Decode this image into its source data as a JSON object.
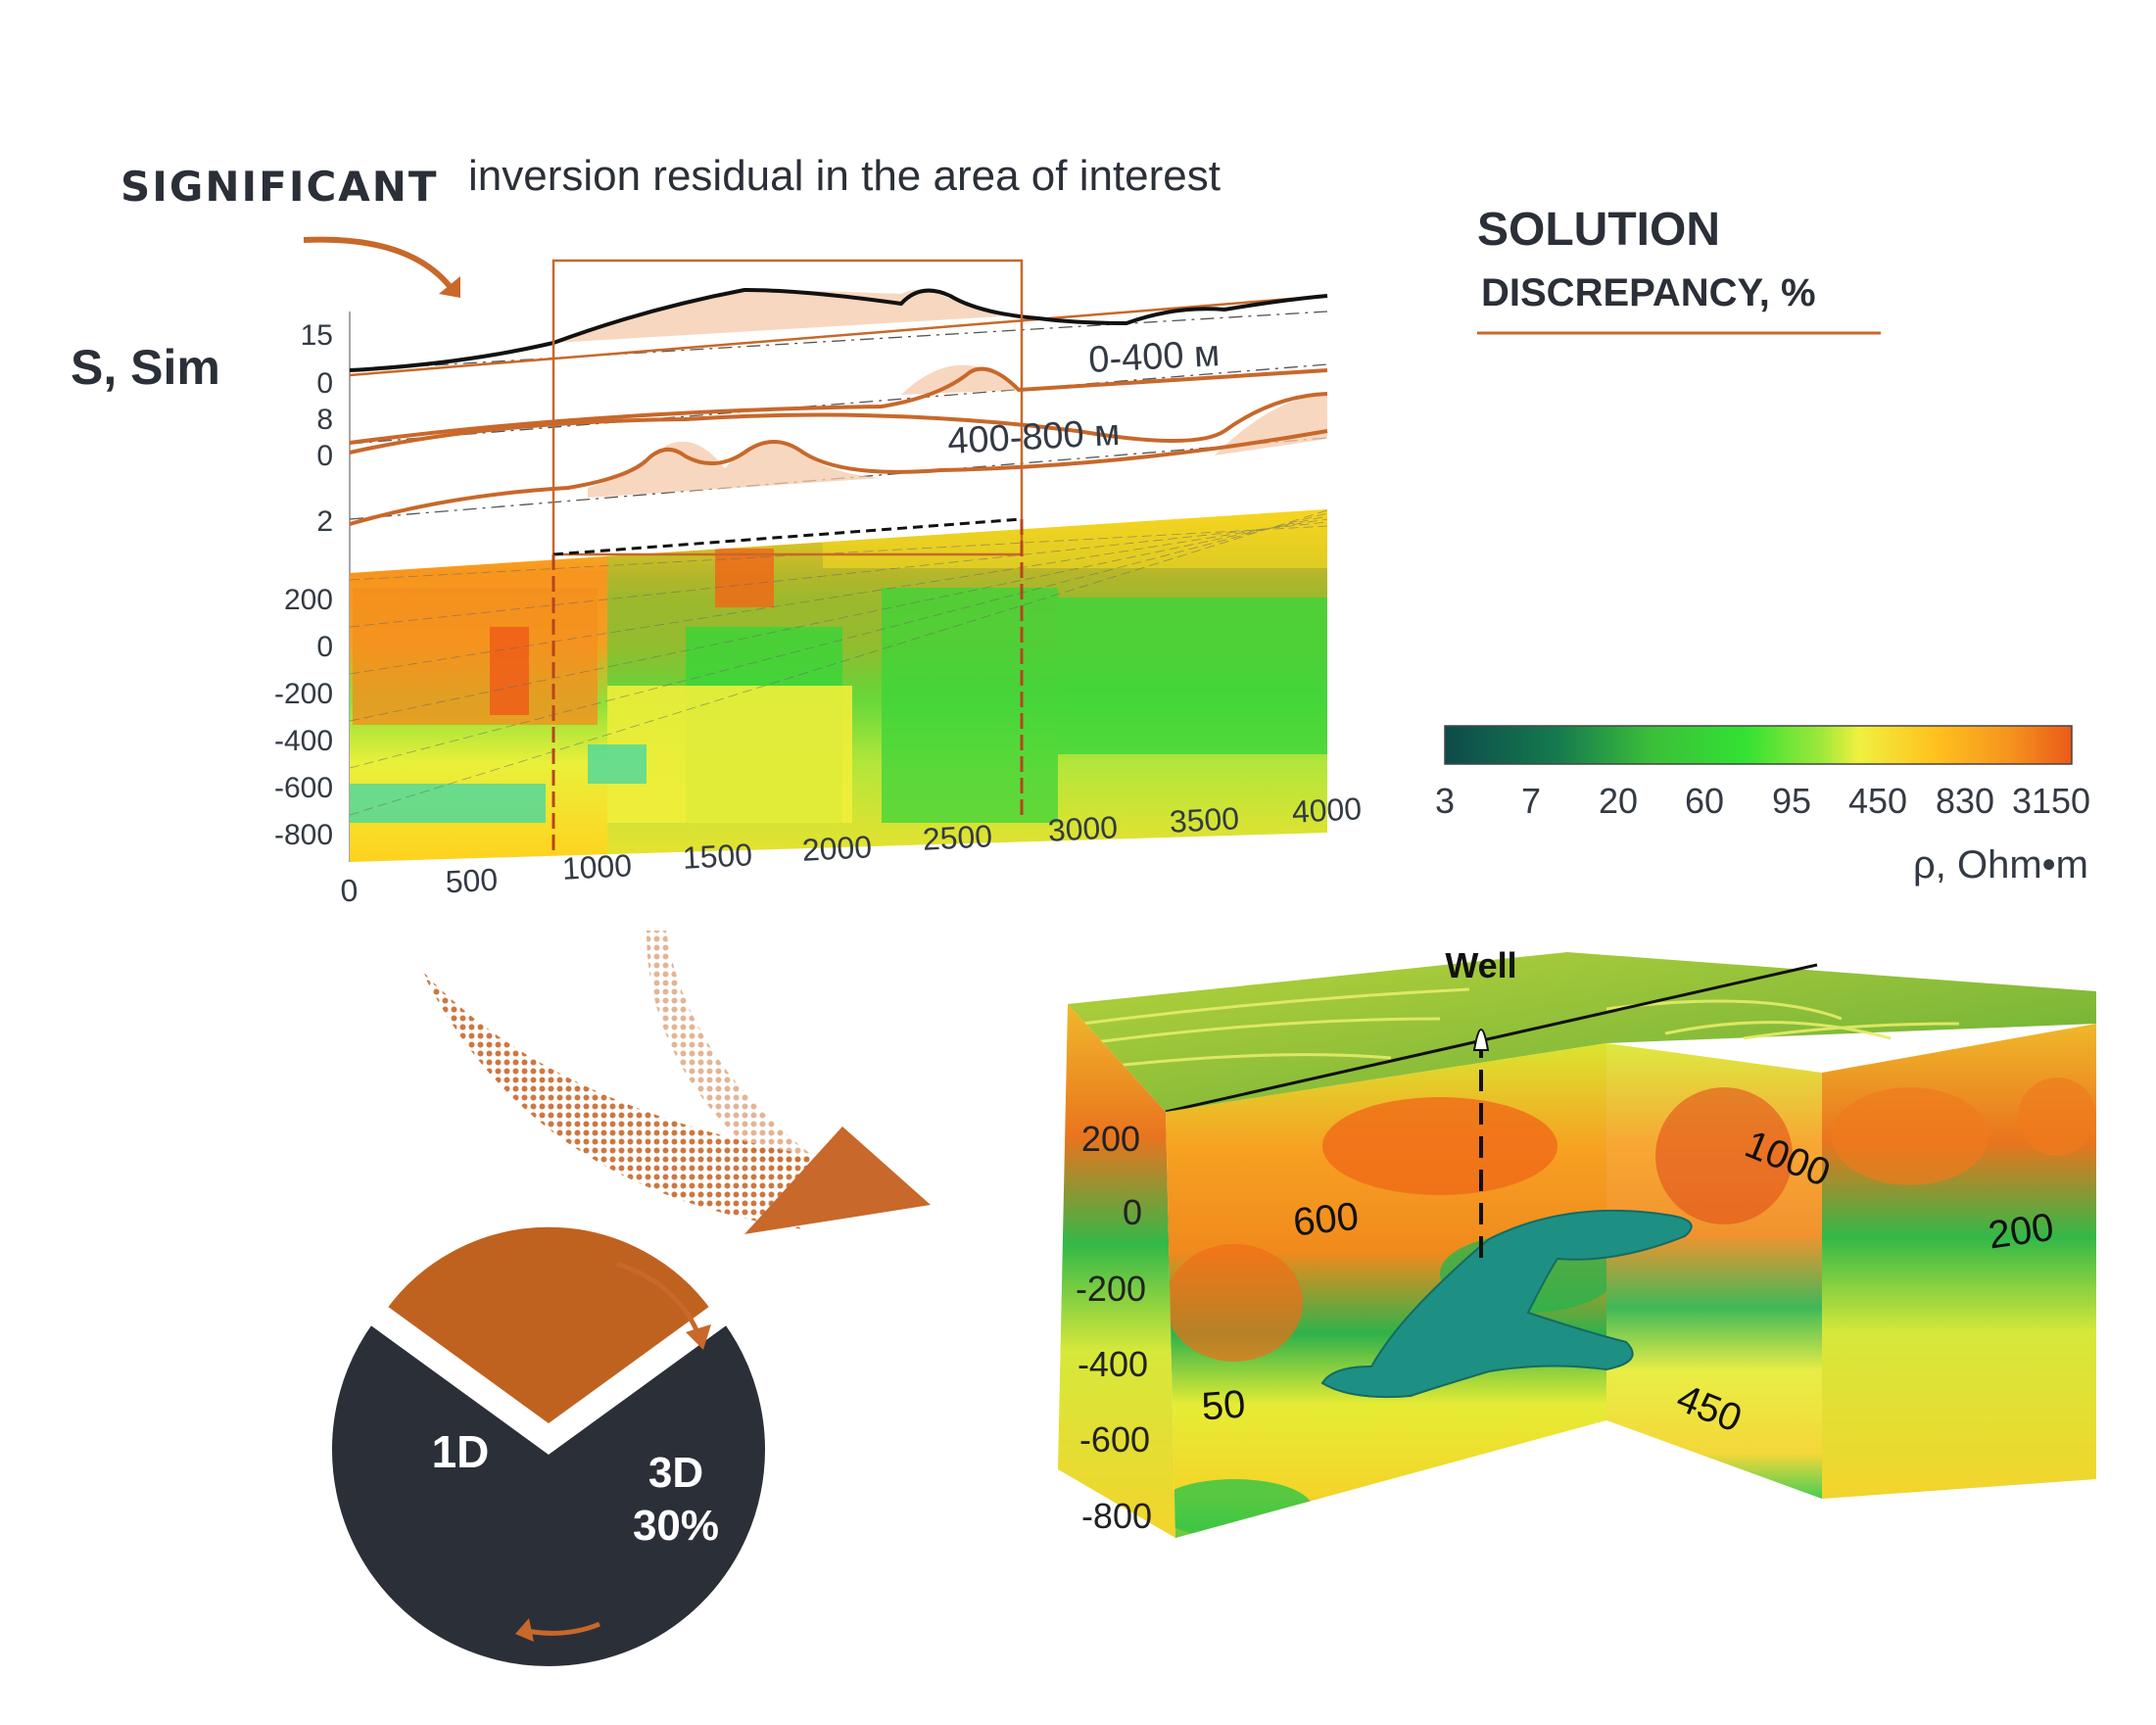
{
  "header": {
    "emphasis": "SIGNIFICANT",
    "text": "inversion residual in the area of interest",
    "ylabel": "S, Sim"
  },
  "legend": {
    "title": "SOLUTION",
    "subtitle": "DISCREPANCY, %",
    "ticks": [
      "3",
      "7",
      "20",
      "60",
      "95",
      "450",
      "830",
      "3150"
    ],
    "unit": "ρ, Ohm•m"
  },
  "profile": {
    "top_ticks": [
      "15",
      "0",
      "8",
      "0",
      "2"
    ],
    "depth_ticks": [
      "200",
      "0",
      "-200",
      "-400",
      "-600",
      "-800"
    ],
    "x_ticks": [
      "0",
      "500",
      "1000",
      "1500",
      "2000",
      "2500",
      "3000",
      "3500",
      "4000"
    ],
    "curve_labels": [
      "0-400 м",
      "400-800 м"
    ]
  },
  "pie": {
    "slices": [
      {
        "label": "1D",
        "value": 70,
        "color": "#2b2f38"
      },
      {
        "label": "3D",
        "pct_text": "30%",
        "value": 30,
        "color": "#c0621f"
      }
    ]
  },
  "block": {
    "well_label": "Well",
    "depth_ticks": [
      "200",
      "0",
      "-200",
      "-400",
      "-600",
      "-800"
    ],
    "annotations": [
      "600",
      "1000",
      "200",
      "50",
      "450"
    ]
  },
  "colors": {
    "accent": "#c8682a",
    "dark": "#2b2f38"
  }
}
